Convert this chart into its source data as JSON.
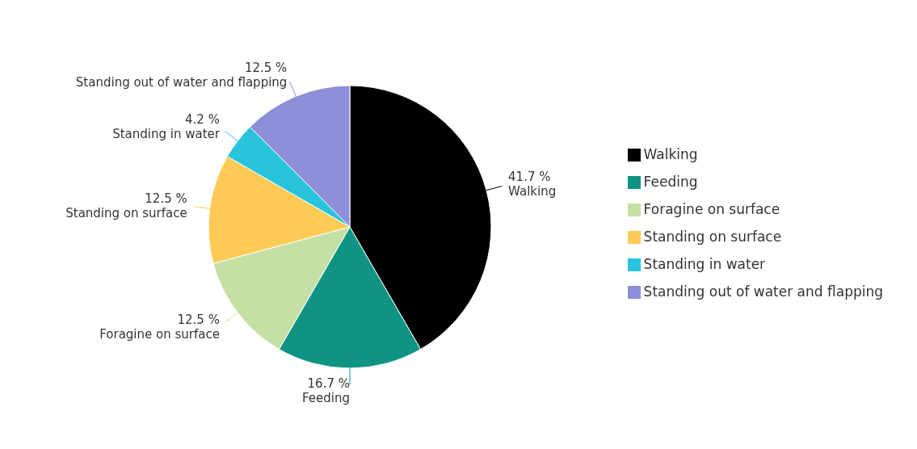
{
  "chart_data": {
    "type": "pie",
    "categories": [
      "Walking",
      "Feeding",
      "Foragine on surface",
      "Standing on surface",
      "Standing in water",
      "Standing out of water and flapping"
    ],
    "values": [
      41.7,
      16.7,
      12.5,
      12.5,
      4.2,
      12.5
    ],
    "value_labels": [
      "41.7 %",
      "16.7 %",
      "12.5 %",
      "12.5 %",
      "4.2 %",
      "12.5 %"
    ],
    "colors": [
      "#000000",
      "#0f9483",
      "#c5e0a5",
      "#fdcb55",
      "#29c4dc",
      "#8d8fd8"
    ],
    "legend": "right"
  }
}
